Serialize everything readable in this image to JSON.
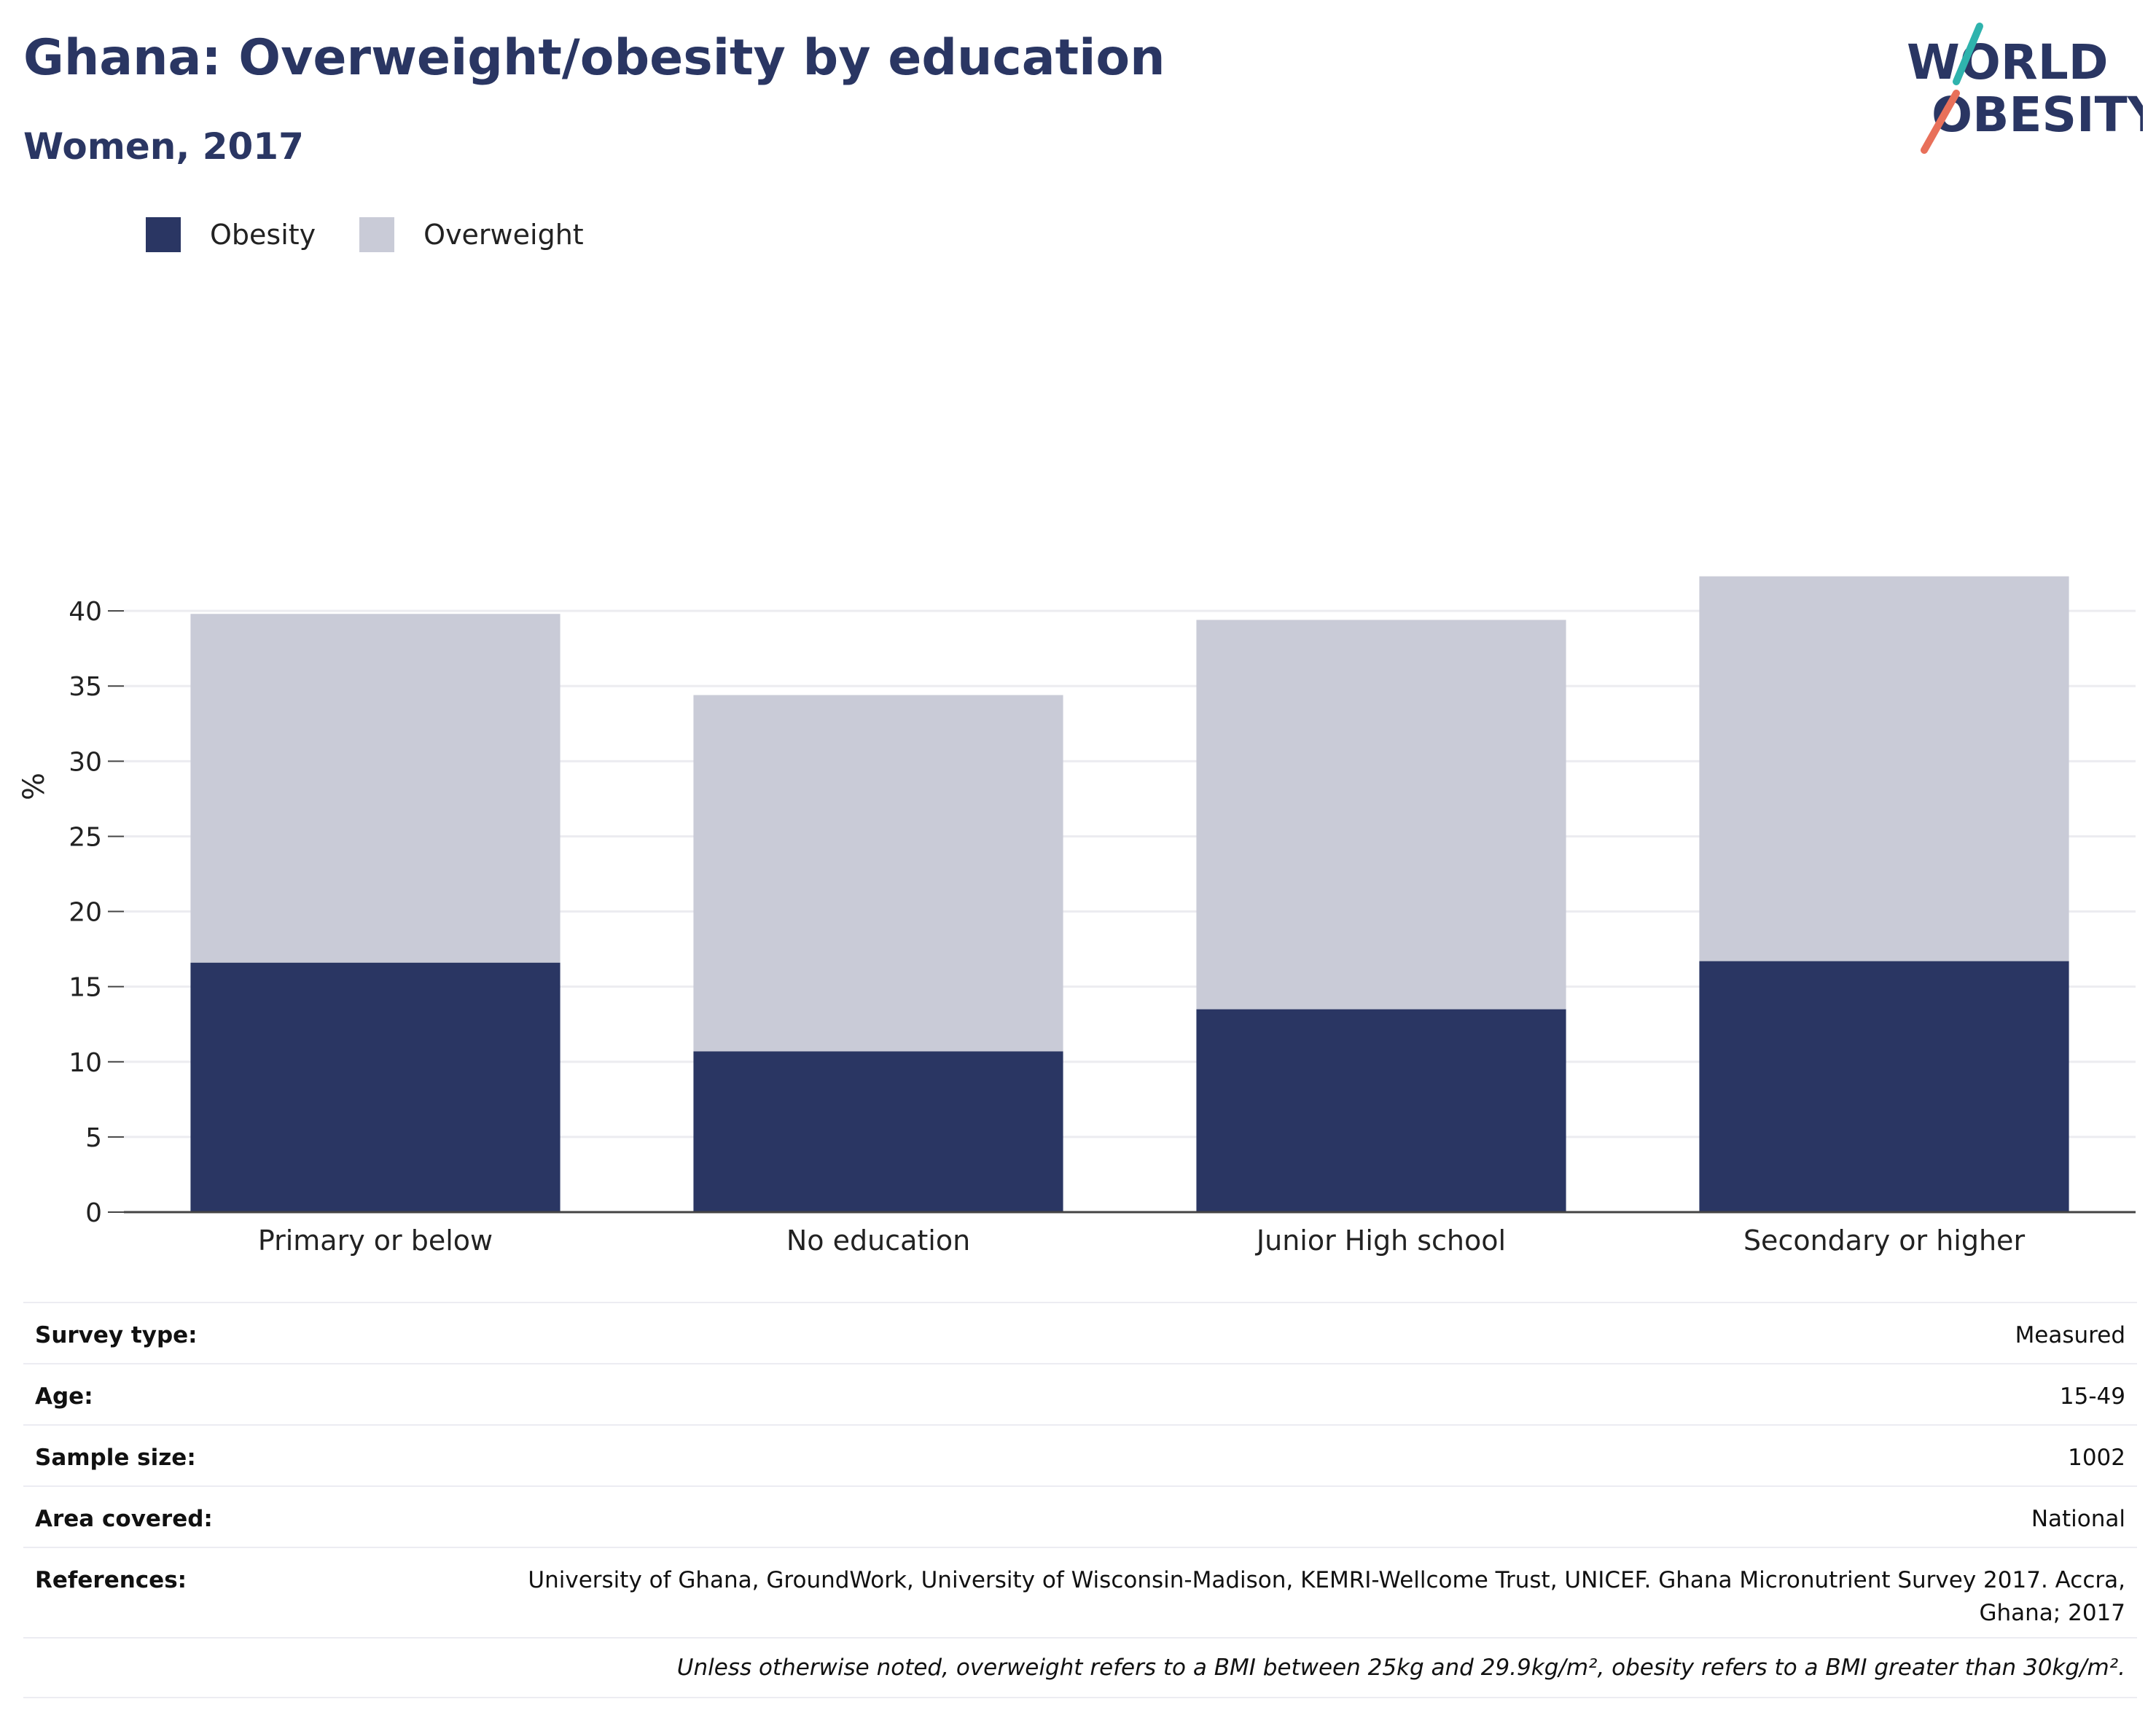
{
  "header": {
    "title": "Ghana: Overweight/obesity by education",
    "subtitle": "Women, 2017"
  },
  "logo": {
    "line1": "WORLD",
    "line2": "OBESITY",
    "accent_top": "#2fb3ad",
    "accent_bottom": "#e8705a",
    "color": "#2a3663"
  },
  "legend": [
    {
      "label": "Obesity",
      "color": "#2a3663"
    },
    {
      "label": "Overweight",
      "color": "#c9cbd7"
    }
  ],
  "chart_data": {
    "type": "bar",
    "stacked": true,
    "categories": [
      "Primary or below",
      "No education",
      "Junior High school",
      "Secondary or higher"
    ],
    "series": [
      {
        "name": "Obesity",
        "values": [
          16.6,
          10.7,
          13.5,
          16.7
        ],
        "color": "#2a3663"
      },
      {
        "name": "Overweight",
        "values": [
          23.2,
          23.7,
          25.9,
          25.6
        ],
        "color": "#c9cbd7"
      }
    ],
    "ylabel": "%",
    "ylim": [
      0,
      45
    ],
    "yticks": [
      0,
      5,
      10,
      15,
      20,
      25,
      30,
      35,
      40
    ],
    "grid": true,
    "legend_position": "top-left"
  },
  "info": {
    "rows": [
      {
        "label": "Survey type:",
        "value": "Measured"
      },
      {
        "label": "Age:",
        "value": "15-49"
      },
      {
        "label": "Sample size:",
        "value": "1002"
      },
      {
        "label": "Area covered:",
        "value": "National"
      },
      {
        "label": "References:",
        "value": "University of Ghana, GroundWork, University of Wisconsin-Madison, KEMRI-Wellcome Trust, UNICEF. Ghana Micronutrient Survey 2017. Accra, Ghana; 2017"
      }
    ],
    "note": "Unless otherwise noted, overweight refers to a BMI between 25kg and 29.9kg/m², obesity refers to a BMI greater than 30kg/m²."
  }
}
